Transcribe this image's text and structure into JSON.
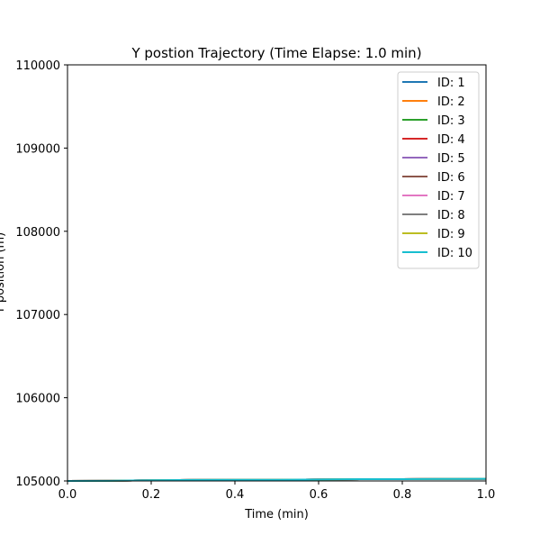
{
  "chart_data": {
    "type": "line",
    "title": "Y postion Trajectory (Time Elapse: 1.0 min)",
    "xlabel": "Time (min)",
    "ylabel": "Y position (m)",
    "xlim": [
      0.0,
      1.0
    ],
    "ylim": [
      105000,
      110000
    ],
    "xticks": [
      "0.0",
      "0.2",
      "0.4",
      "0.6",
      "0.8",
      "1.0"
    ],
    "yticks": [
      "105000",
      "106000",
      "107000",
      "108000",
      "109000",
      "110000"
    ],
    "grid": false,
    "legend_position": "top-right",
    "x": [
      0.0,
      0.1,
      0.2,
      0.3,
      0.4,
      0.5,
      0.6,
      0.7,
      0.8,
      0.9,
      1.0
    ],
    "series": [
      {
        "name": "ID: 1",
        "color": "#1f77b4",
        "values": [
          105000,
          105002,
          105008,
          105012,
          105013,
          105014,
          105018,
          105022,
          105022,
          105024,
          105026
        ]
      },
      {
        "name": "ID: 2",
        "color": "#ff7f0e",
        "values": [
          105000,
          105002,
          105008,
          105012,
          105013,
          105014,
          105018,
          105022,
          105022,
          105024,
          105026
        ]
      },
      {
        "name": "ID: 3",
        "color": "#2ca02c",
        "values": [
          105000,
          105002,
          105008,
          105012,
          105013,
          105014,
          105018,
          105022,
          105022,
          105024,
          105026
        ]
      },
      {
        "name": "ID: 4",
        "color": "#d62728",
        "values": [
          105000,
          105002,
          105008,
          105012,
          105013,
          105014,
          105018,
          105022,
          105022,
          105024,
          105026
        ]
      },
      {
        "name": "ID: 5",
        "color": "#9467bd",
        "values": [
          105000,
          105002,
          105008,
          105012,
          105013,
          105014,
          105018,
          105022,
          105022,
          105024,
          105026
        ]
      },
      {
        "name": "ID: 6",
        "color": "#8c564b",
        "values": [
          105000,
          105002,
          105008,
          105012,
          105013,
          105014,
          105018,
          105022,
          105022,
          105024,
          105026
        ]
      },
      {
        "name": "ID: 7",
        "color": "#e377c2",
        "values": [
          105000,
          105002,
          105008,
          105012,
          105013,
          105014,
          105018,
          105022,
          105022,
          105024,
          105026
        ]
      },
      {
        "name": "ID: 8",
        "color": "#7f7f7f",
        "values": [
          105000,
          105002,
          105008,
          105012,
          105013,
          105014,
          105018,
          105022,
          105022,
          105024,
          105026
        ]
      },
      {
        "name": "ID: 9",
        "color": "#bcbd22",
        "values": [
          105000,
          105002,
          105008,
          105012,
          105013,
          105014,
          105018,
          105022,
          105022,
          105024,
          105026
        ]
      },
      {
        "name": "ID: 10",
        "color": "#17becf",
        "values": [
          105000,
          105002,
          105008,
          105012,
          105013,
          105014,
          105018,
          105022,
          105022,
          105024,
          105026
        ]
      }
    ]
  }
}
